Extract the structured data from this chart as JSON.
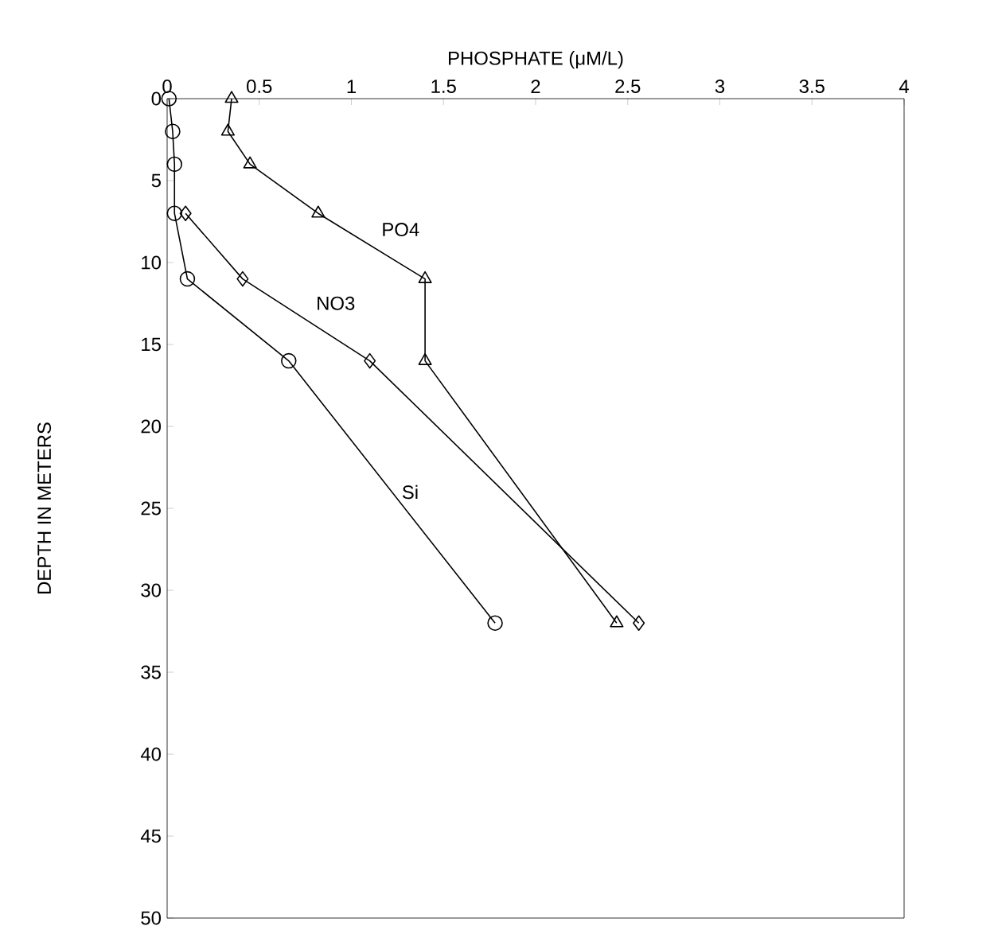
{
  "chart_data": {
    "type": "line",
    "xlabel": "PHOSPHATE (μM/L)",
    "ylabel": "DEPTH IN METERS",
    "xlim": [
      0,
      4
    ],
    "xticks": [
      0,
      0.5,
      1,
      1.5,
      2,
      2.5,
      3,
      3.5,
      4
    ],
    "ylim": [
      50,
      0
    ],
    "yticks": [
      0,
      5,
      10,
      15,
      20,
      25,
      30,
      35,
      40,
      45,
      50
    ],
    "grid": false,
    "legend": false,
    "series": [
      {
        "name": "PO4",
        "color": "#000000",
        "marker": "triangle",
        "x": [
          0.35,
          0.33,
          0.45,
          0.82,
          1.4,
          1.4,
          2.44
        ],
        "values": [
          0,
          2,
          4,
          7,
          11,
          16,
          32
        ]
      },
      {
        "name": "NO3",
        "color": "#000000",
        "marker": "diamond",
        "x": [
          0.1,
          0.41,
          1.1,
          2.56
        ],
        "values": [
          7,
          11,
          16,
          32
        ]
      },
      {
        "name": "Si",
        "color": "#000000",
        "marker": "circle",
        "x": [
          0.01,
          0.03,
          0.04,
          0.04,
          0.11,
          0.66,
          1.78
        ],
        "values": [
          0,
          2,
          4,
          7,
          11,
          16,
          32
        ]
      }
    ]
  }
}
